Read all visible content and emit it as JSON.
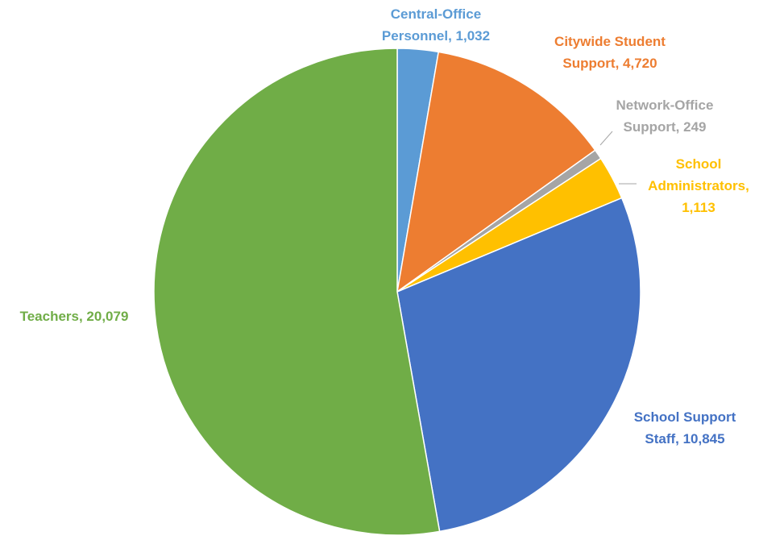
{
  "chart_data": {
    "type": "pie",
    "title": "",
    "start": "top",
    "direction": "clockwise",
    "slices": [
      {
        "name": "Central-Office Personnel",
        "value": 1032,
        "color": "#5b9bd5",
        "label_lines": [
          "Central-Office",
          "Personnel, 1,032"
        ]
      },
      {
        "name": "Citywide Student Support",
        "value": 4720,
        "color": "#ed7d31",
        "label_lines": [
          "Citywide Student",
          "Support, 4,720"
        ]
      },
      {
        "name": "Network-Office Support",
        "value": 249,
        "color": "#a5a5a5",
        "label_lines": [
          "Network-Office",
          "Support, 249"
        ]
      },
      {
        "name": "School Administrators",
        "value": 1113,
        "color": "#ffc000",
        "label_lines": [
          "School",
          "Administrators,",
          "1,113"
        ]
      },
      {
        "name": "School Support Staff",
        "value": 10845,
        "color": "#4472c4",
        "label_lines": [
          "School Support",
          "Staff, 10,845"
        ]
      },
      {
        "name": "Teachers",
        "value": 20079,
        "color": "#70ad47",
        "label_lines": [
          "Teachers, 20,079"
        ]
      }
    ]
  }
}
